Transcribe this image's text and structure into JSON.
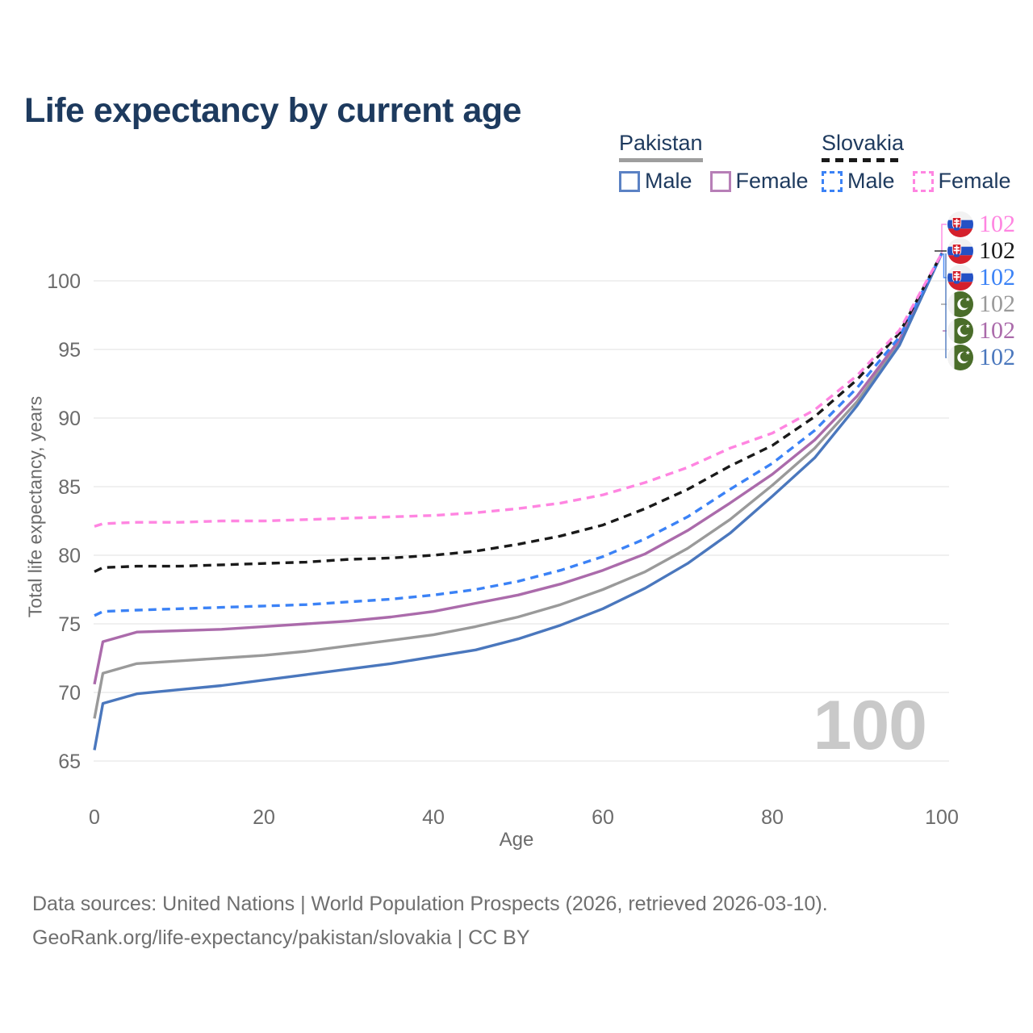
{
  "title": "Life expectancy by current age",
  "legend": {
    "groups": [
      {
        "label": "Pakistan",
        "underline_style": "solid",
        "underline_color": "#9e9e9e",
        "entries": [
          {
            "label": "Male",
            "color": "#5b82c4",
            "dash": false
          },
          {
            "label": "Female",
            "color": "#b77fb7",
            "dash": false
          }
        ]
      },
      {
        "label": "Slovakia",
        "underline_style": "dashed",
        "underline_color": "#1a1a1a",
        "entries": [
          {
            "label": "Male",
            "color": "#3b82f6",
            "dash": true
          },
          {
            "label": "Female",
            "color": "#ff85e1",
            "dash": true
          }
        ]
      }
    ]
  },
  "chart_data": {
    "type": "line",
    "title": "Life expectancy by current age",
    "xlabel": "Age",
    "ylabel": "Total life expectancy, years",
    "x_ticks": [
      0,
      20,
      40,
      60,
      80,
      100
    ],
    "y_ticks": [
      65,
      70,
      75,
      80,
      85,
      90,
      95,
      100
    ],
    "xlim": [
      0,
      100
    ],
    "ylim": [
      63.5,
      103
    ],
    "grid": "horizontal",
    "age_indicator": "100",
    "x": [
      0,
      1,
      5,
      10,
      15,
      20,
      25,
      30,
      35,
      40,
      45,
      50,
      55,
      60,
      65,
      70,
      75,
      80,
      85,
      90,
      95,
      100
    ],
    "series": [
      {
        "name": "Pakistan",
        "country": "Pakistan",
        "sex": "Both",
        "style": "solid",
        "color": "#9a9a9a",
        "values": [
          68.1,
          71.4,
          72.1,
          72.3,
          72.5,
          72.7,
          73.0,
          73.4,
          73.8,
          74.2,
          74.8,
          75.5,
          76.4,
          77.5,
          78.8,
          80.5,
          82.6,
          85.1,
          87.8,
          91.2,
          95.5,
          102
        ]
      },
      {
        "name": "Pakistan Female",
        "country": "Pakistan",
        "sex": "Female",
        "style": "solid",
        "color": "#ab6bab",
        "values": [
          70.6,
          73.7,
          74.4,
          74.5,
          74.6,
          74.8,
          75.0,
          75.2,
          75.5,
          75.9,
          76.5,
          77.1,
          77.9,
          78.9,
          80.1,
          81.8,
          83.8,
          85.9,
          88.4,
          91.6,
          95.7,
          102
        ]
      },
      {
        "name": "Pakistan Male",
        "country": "Pakistan",
        "sex": "Male",
        "style": "solid",
        "color": "#4a77bd",
        "values": [
          65.8,
          69.2,
          69.9,
          70.2,
          70.5,
          70.9,
          71.3,
          71.7,
          72.1,
          72.6,
          73.1,
          73.9,
          74.9,
          76.1,
          77.6,
          79.4,
          81.6,
          84.3,
          87.1,
          90.9,
          95.3,
          102
        ]
      },
      {
        "name": "Slovakia Male",
        "country": "Slovakia",
        "sex": "Male",
        "style": "dashed",
        "color": "#3b82f6",
        "values": [
          75.6,
          75.9,
          76.0,
          76.1,
          76.2,
          76.3,
          76.4,
          76.6,
          76.8,
          77.1,
          77.5,
          78.1,
          78.9,
          79.9,
          81.2,
          82.8,
          84.8,
          86.7,
          89.1,
          92.2,
          95.9,
          102
        ]
      },
      {
        "name": "Slovakia",
        "country": "Slovakia",
        "sex": "Both",
        "style": "dashed",
        "color": "#1a1a1a",
        "values": [
          78.8,
          79.1,
          79.2,
          79.2,
          79.3,
          79.4,
          79.5,
          79.7,
          79.8,
          80.0,
          80.3,
          80.8,
          81.4,
          82.2,
          83.4,
          84.8,
          86.5,
          88.0,
          90.1,
          92.8,
          96.2,
          102
        ]
      },
      {
        "name": "Slovakia Female",
        "country": "Slovakia",
        "sex": "Female",
        "style": "dashed",
        "color": "#ff85e1",
        "values": [
          82.1,
          82.3,
          82.4,
          82.4,
          82.5,
          82.5,
          82.6,
          82.7,
          82.8,
          82.9,
          83.1,
          83.4,
          83.8,
          84.4,
          85.3,
          86.4,
          87.8,
          88.9,
          90.6,
          93.1,
          96.4,
          102
        ]
      }
    ],
    "end_labels": [
      {
        "flag": "slovakia",
        "series": "Slovakia Female",
        "value": "102",
        "color": "#ff85e1"
      },
      {
        "flag": "slovakia",
        "series": "Slovakia",
        "value": "102",
        "color": "#1a1a1a"
      },
      {
        "flag": "slovakia",
        "series": "Slovakia Male",
        "value": "102",
        "color": "#3b82f6"
      },
      {
        "flag": "pakistan",
        "series": "Pakistan",
        "value": "102",
        "color": "#9a9a9a"
      },
      {
        "flag": "pakistan",
        "series": "Pakistan Female",
        "value": "102",
        "color": "#ab6bab"
      },
      {
        "flag": "pakistan",
        "series": "Pakistan Male",
        "value": "102",
        "color": "#4a77bd"
      }
    ]
  },
  "footer": {
    "line1": "Data sources: United Nations | World Population Prospects (2026, retrieved 2026-03-10).",
    "line2": "GeoRank.org/life-expectancy/pakistan/slovakia | CC BY"
  }
}
